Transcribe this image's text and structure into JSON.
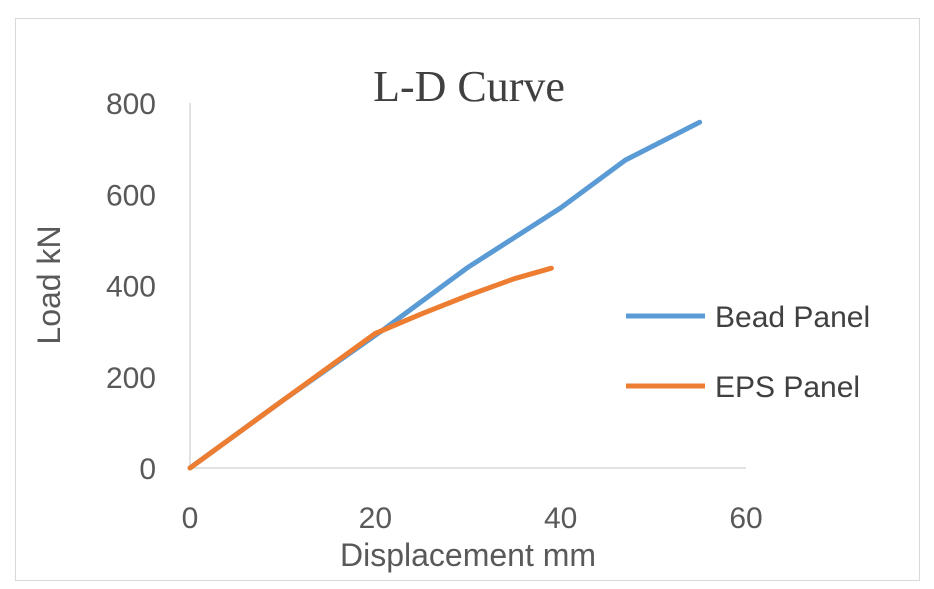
{
  "chart_data": {
    "type": "line",
    "title": "L-D Curve",
    "xlabel": "Displacement mm",
    "ylabel": "Load kN",
    "xlim": [
      0,
      60
    ],
    "ylim": [
      0,
      800
    ],
    "xticks": [
      "0",
      "20",
      "40",
      "60"
    ],
    "yticks": [
      "0",
      "200",
      "400",
      "600",
      "800"
    ],
    "grid": false,
    "legend_position": "right",
    "series": [
      {
        "name": "Bead Panel",
        "color": "#5b9bd5",
        "points": [
          [
            0,
            0
          ],
          [
            10,
            148
          ],
          [
            21,
            305
          ],
          [
            30,
            440
          ],
          [
            40,
            570
          ],
          [
            47,
            675
          ],
          [
            55,
            758
          ]
        ]
      },
      {
        "name": "EPS Panel",
        "color": "#ed7d31",
        "points": [
          [
            0,
            0
          ],
          [
            10,
            148
          ],
          [
            20,
            295
          ],
          [
            25,
            338
          ],
          [
            30,
            378
          ],
          [
            35,
            415
          ],
          [
            39,
            438
          ]
        ]
      }
    ]
  }
}
